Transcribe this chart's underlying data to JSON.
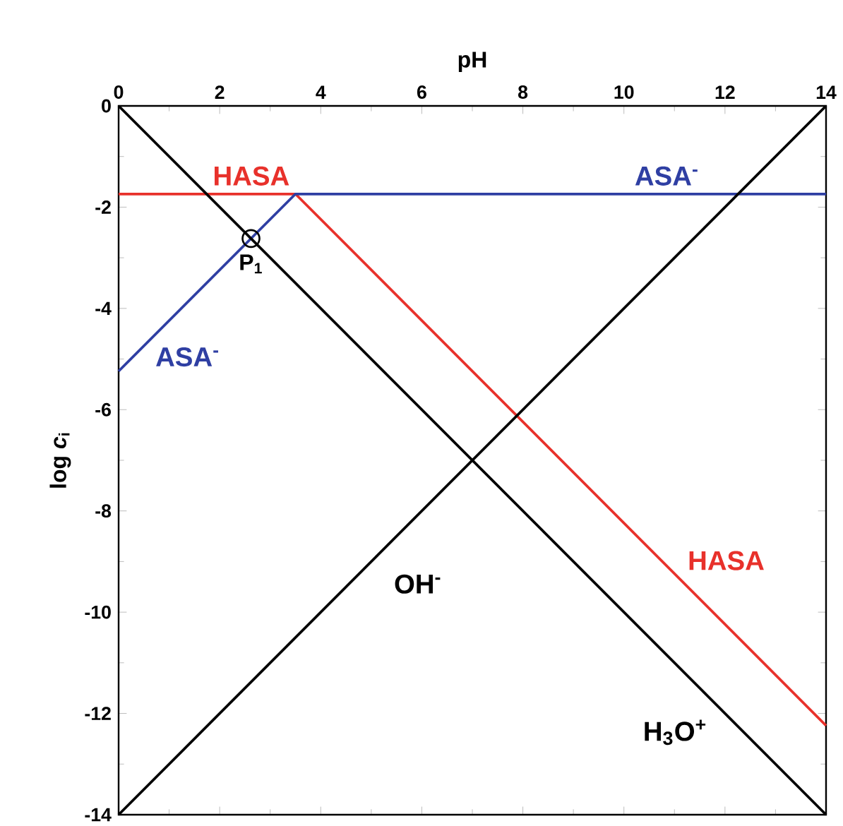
{
  "chart_data": {
    "type": "line",
    "xlabel": "pH",
    "ylabel": "log *c*$_{i}$",
    "xlim": [
      0,
      14
    ],
    "ylim": [
      -14,
      0
    ],
    "xticks": [
      0,
      2,
      4,
      6,
      8,
      10,
      12,
      14
    ],
    "yticks": [
      -14,
      -12,
      -10,
      -8,
      -6,
      -4,
      -2,
      0
    ],
    "grid": false,
    "legend": false,
    "marker": "none",
    "line_style": "solid",
    "series": [
      {
        "name": "HASA",
        "color": "#e8312b",
        "x": [
          0,
          3.5,
          14
        ],
        "values": [
          -1.74,
          -1.74,
          -12.24
        ]
      },
      {
        "name": "ASA$^{-}$",
        "color": "#2f3fa3",
        "x": [
          0,
          3.5,
          14
        ],
        "values": [
          -5.24,
          -1.74,
          -1.74
        ]
      },
      {
        "name": "H$_{3}$O$^{+}$",
        "color": "#000000",
        "x": [
          0,
          14
        ],
        "values": [
          0,
          -14
        ]
      },
      {
        "name": "OH$^{-}$",
        "color": "#000000",
        "x": [
          0,
          14
        ],
        "values": [
          -14,
          0
        ]
      },
      {
        "type": "scatter",
        "name": "P$_{1}$",
        "color": "#000000",
        "marker": "circle",
        "x": [
          2.62
        ],
        "values": [
          -2.62
        ]
      }
    ]
  }
}
